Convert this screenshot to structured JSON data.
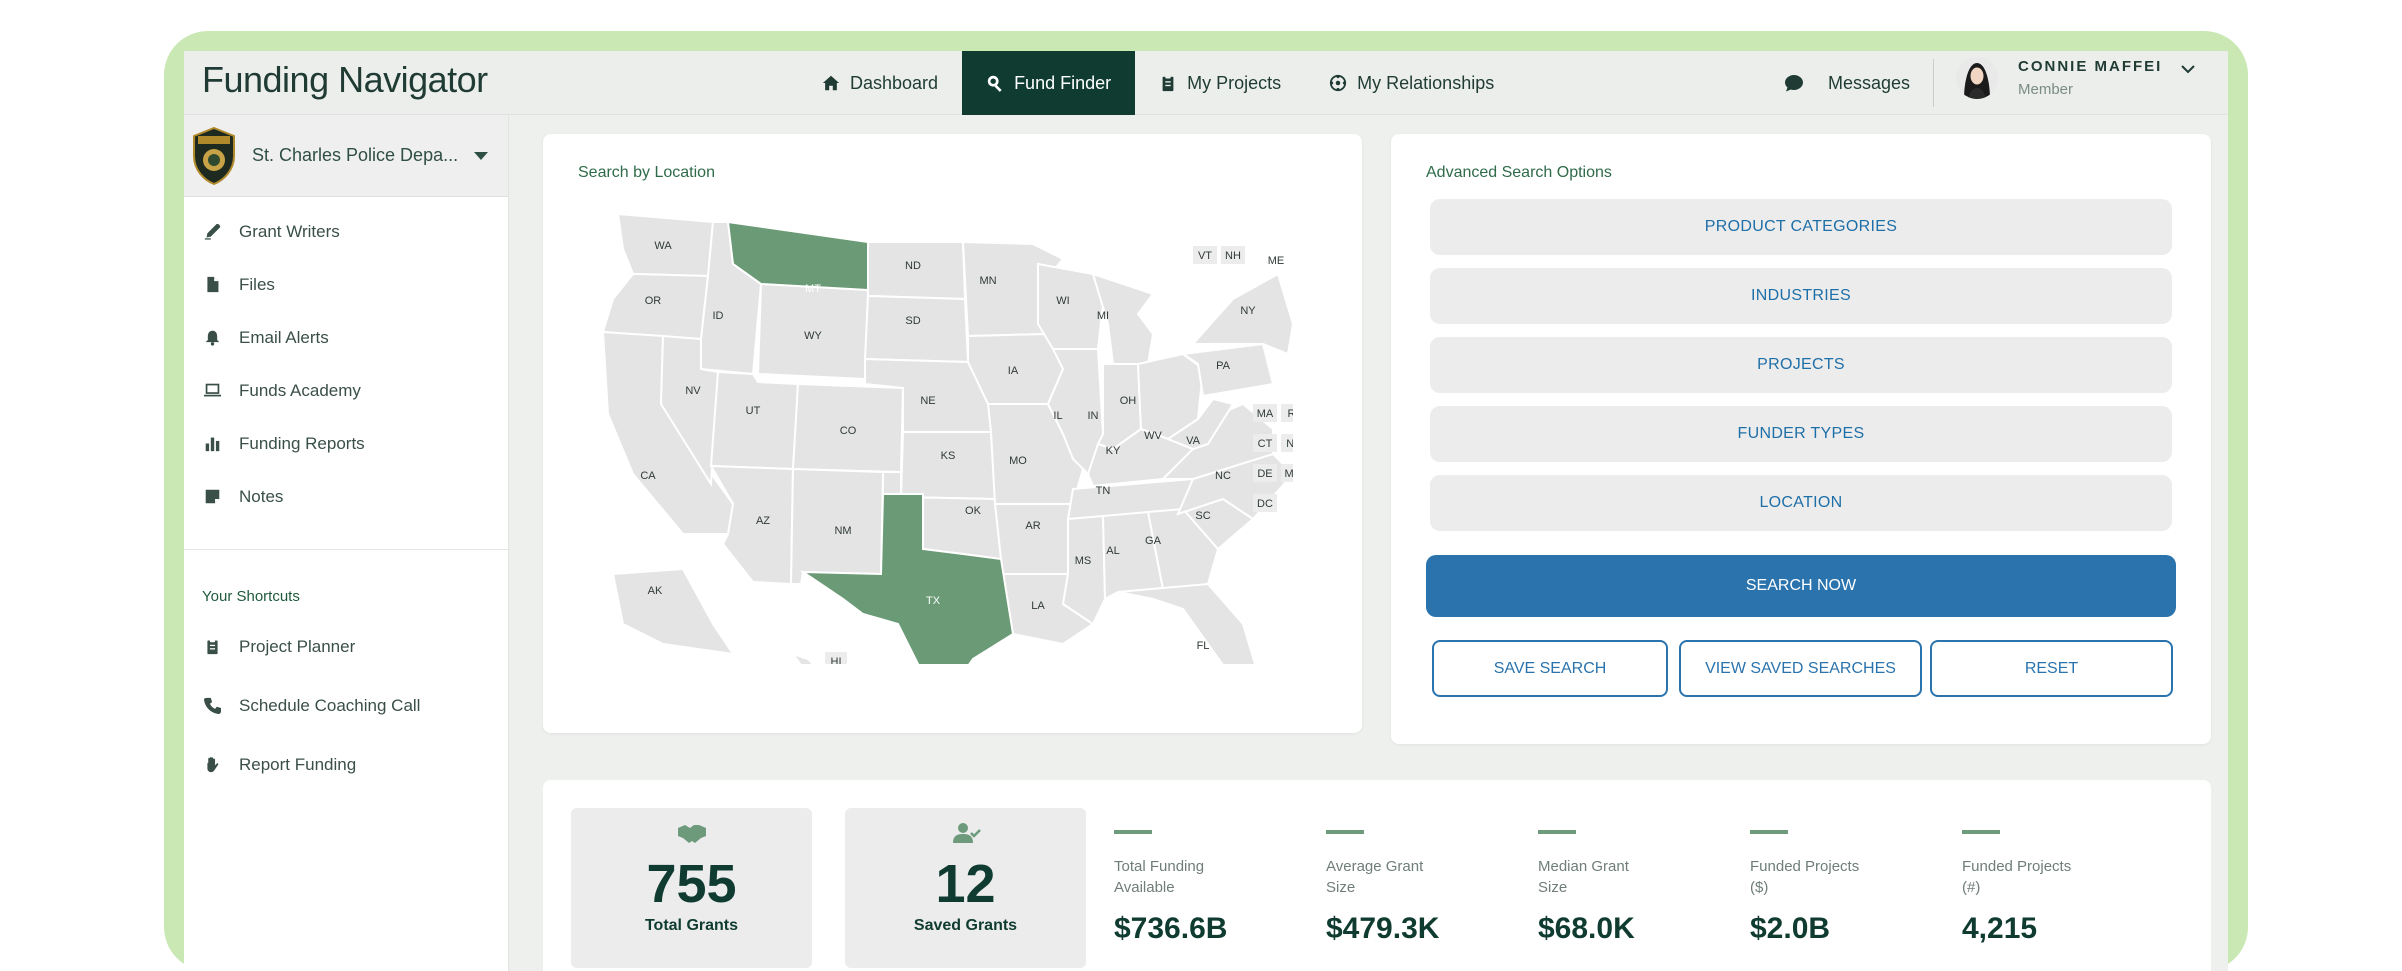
{
  "app": {
    "brand": "Funding Navigator"
  },
  "nav": [
    {
      "label": "Dashboard",
      "icon": "home-icon",
      "active": false
    },
    {
      "label": "Fund Finder",
      "icon": "search-icon",
      "active": true
    },
    {
      "label": "My Projects",
      "icon": "clipboard-icon",
      "active": false
    },
    {
      "label": "My Relationships",
      "icon": "network-icon",
      "active": false
    }
  ],
  "header": {
    "messages_label": "Messages",
    "user_name": "CONNIE MAFFEI",
    "user_role": "Member"
  },
  "sidebar": {
    "org_name": "St. Charles Police Depa...",
    "items": [
      {
        "label": "Grant Writers",
        "icon": "pen-icon"
      },
      {
        "label": "Files",
        "icon": "file-icon"
      },
      {
        "label": "Email Alerts",
        "icon": "bell-icon"
      },
      {
        "label": "Funds Academy",
        "icon": "laptop-icon"
      },
      {
        "label": "Funding Reports",
        "icon": "bar-chart-icon"
      },
      {
        "label": "Notes",
        "icon": "note-icon"
      }
    ],
    "shortcuts_title": "Your Shortcuts",
    "shortcuts": [
      {
        "label": "Project Planner",
        "icon": "clipboard-icon"
      },
      {
        "label": "Schedule Coaching Call",
        "icon": "phone-icon"
      },
      {
        "label": "Report Funding",
        "icon": "hand-icon"
      }
    ]
  },
  "map": {
    "title": "Search by Location",
    "selected_color": "#6a9a76",
    "state_color": "#e4e4e4",
    "selected_states": [
      "MT",
      "TX"
    ]
  },
  "advanced": {
    "title": "Advanced Search Options",
    "options": [
      "PRODUCT CATEGORIES",
      "INDUSTRIES",
      "PROJECTS",
      "FUNDER TYPES",
      "LOCATION"
    ],
    "search_now": "SEARCH NOW",
    "save_search": "SAVE SEARCH",
    "view_saved": "VIEW SAVED SEARCHES",
    "reset": "RESET"
  },
  "stats": {
    "total_grants": {
      "value": "755",
      "label": "Total Grants"
    },
    "saved_grants": {
      "value": "12",
      "label": "Saved Grants"
    },
    "metrics": [
      {
        "label": "Total Funding Available",
        "value": "$736.6B"
      },
      {
        "label": "Average Grant Size",
        "value": "$479.3K"
      },
      {
        "label": "Median Grant Size",
        "value": "$68.0K"
      },
      {
        "label": "Funded Projects ($)",
        "value": "$2.0B"
      },
      {
        "label": "Funded Projects (#)",
        "value": "4,215"
      }
    ]
  }
}
